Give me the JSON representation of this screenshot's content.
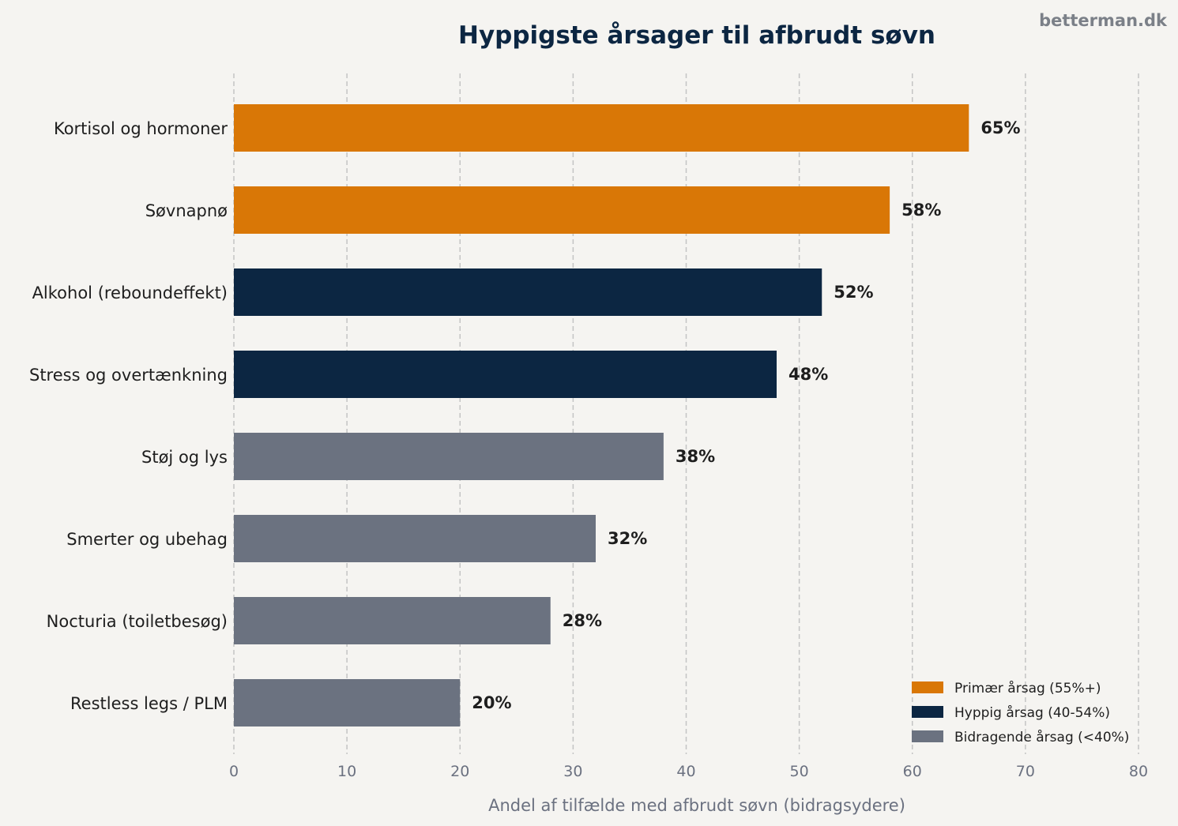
{
  "watermark": "betterman.dk",
  "chart_data": {
    "type": "bar",
    "orientation": "horizontal",
    "title": "Hyppigste årsager til afbrudt søvn",
    "xlabel": "Andel af tilfælde med afbrudt søvn (bidragsydere)",
    "ylabel": "",
    "xlim": [
      0,
      80
    ],
    "xticks": [
      0,
      10,
      20,
      30,
      40,
      50,
      60,
      70,
      80
    ],
    "grid": "vertical dashed",
    "legend_position": "bottom-right",
    "categories": [
      "Kortisol og hormoner",
      "Søvnapnø",
      "Alkohol (reboundeffekt)",
      "Stress og overtænkning",
      "Støj og lys",
      "Smerter og ubehag",
      "Nocturia (toiletbesøg)",
      "Restless legs / PLM"
    ],
    "values": [
      65,
      58,
      52,
      48,
      38,
      32,
      28,
      20
    ],
    "value_labels": [
      "65%",
      "58%",
      "52%",
      "48%",
      "38%",
      "32%",
      "28%",
      "20%"
    ],
    "groups": [
      "primary",
      "primary",
      "frequent",
      "frequent",
      "contributing",
      "contributing",
      "contributing",
      "contributing"
    ],
    "legend": [
      {
        "key": "primary",
        "label": "Primær årsag (55%+)",
        "color": "#d97706"
      },
      {
        "key": "frequent",
        "label": "Hyppig årsag (40-54%)",
        "color": "#0c2642"
      },
      {
        "key": "contributing",
        "label": "Bidragende årsag (<40%)",
        "color": "#6b7280"
      }
    ]
  }
}
